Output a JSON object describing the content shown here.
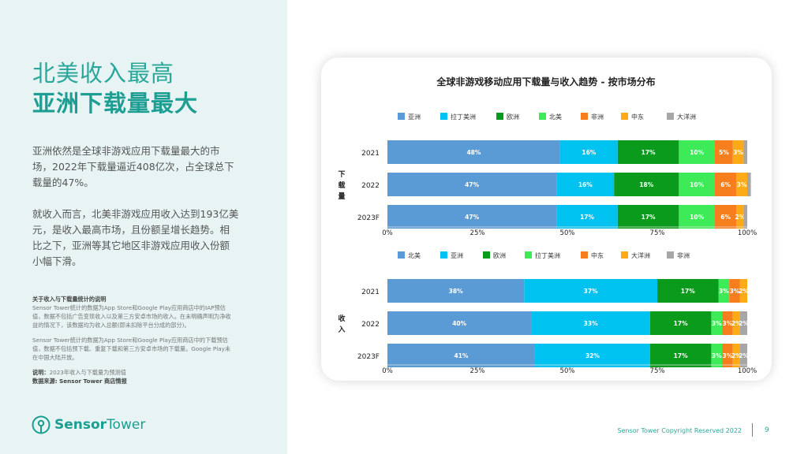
{
  "slide": {
    "title_line1": "北美收入最高",
    "title_line2": "亚洲下载量最大",
    "paragraph1": "亚洲依然是全球非游戏应用下载量最大的市场，2022年下载量逼近408亿次，占全球总下载量的47%。",
    "paragraph2": "就收入而言，北美非游戏应用收入达到193亿美元，是收入最高市场，且份额呈增长趋势。相比之下，亚洲等其它地区非游戏应用收入份额小幅下滑。",
    "notes_heading": "关于收入与下载量统计的说明",
    "notes_p1": "Sensor Tower统计的数据为App Store和Google Play应用商店中的IAP预估值，数据不包括广告变现收入以及第三方安卓市场的收入。在未明确声明为净收益的情况下，该数据均为收入总额(即未扣除平台分成的部分)。",
    "notes_p2": "Sensor Tower统计的数据为App Store和Google Play应用商店中的下载预估值，数据不包括预下载、重复下载和第三方安卓市场的下载量。Google Play未在中国大陆开放。",
    "note_label": "说明：",
    "note_text": "2023年收入与下载量为预测值",
    "source": "数据来源: Sensor Tower 商店情报",
    "brand_a": "Sensor",
    "brand_b": "Tower",
    "footer": "Sensor Tower Copyright Reserved 2022",
    "page_number": "9",
    "accent_color": "#1e9e93",
    "icons": {
      "logo": "sensor-tower-logo-icon"
    }
  },
  "chart_data": [
    {
      "type": "bar",
      "orientation": "horizontal",
      "stacked": true,
      "title": "全球非游戏移动应用下载量与收入趋势 - 按市场分布",
      "ylabel": "下载量",
      "categories": [
        "2021",
        "2022",
        "2023F"
      ],
      "xlim": [
        0,
        100
      ],
      "xticks": [
        "0%",
        "25%",
        "50%",
        "75%",
        "100%"
      ],
      "legend": "top",
      "series": [
        {
          "name": "亚洲",
          "color": "#5b9bd5",
          "values": [
            48,
            47,
            47
          ]
        },
        {
          "name": "拉丁美洲",
          "color": "#00c2f0",
          "values": [
            16,
            16,
            17
          ]
        },
        {
          "name": "欧洲",
          "color": "#0a9a1c",
          "values": [
            17,
            18,
            17
          ]
        },
        {
          "name": "北美",
          "color": "#3ceb57",
          "values": [
            10,
            10,
            10
          ]
        },
        {
          "name": "非洲",
          "color": "#f67e1c",
          "values": [
            5,
            6,
            6
          ]
        },
        {
          "name": "中东",
          "color": "#fcaa16",
          "values": [
            3,
            3,
            2
          ]
        },
        {
          "name": "大洋洲",
          "color": "#a6a6a6",
          "values": [
            1,
            1,
            1
          ]
        }
      ]
    },
    {
      "type": "bar",
      "orientation": "horizontal",
      "stacked": true,
      "ylabel": "收入",
      "categories": [
        "2021",
        "2022",
        "2023F"
      ],
      "xlim": [
        0,
        100
      ],
      "xticks": [
        "0%",
        "25%",
        "50%",
        "75%",
        "100%"
      ],
      "legend": "top",
      "series": [
        {
          "name": "北美",
          "color": "#5b9bd5",
          "values": [
            38,
            40,
            41
          ]
        },
        {
          "name": "亚洲",
          "color": "#00c2f0",
          "values": [
            37,
            33,
            32
          ]
        },
        {
          "name": "欧洲",
          "color": "#0a9a1c",
          "values": [
            17,
            17,
            17
          ]
        },
        {
          "name": "拉丁美洲",
          "color": "#3ceb57",
          "values": [
            3,
            3,
            3
          ]
        },
        {
          "name": "中东",
          "color": "#f67e1c",
          "values": [
            3,
            3,
            3
          ]
        },
        {
          "name": "大洋洲",
          "color": "#fcaa16",
          "values": [
            2,
            2,
            2
          ]
        },
        {
          "name": "非洲",
          "color": "#a6a6a6",
          "values": [
            0,
            2,
            2
          ]
        }
      ]
    }
  ]
}
